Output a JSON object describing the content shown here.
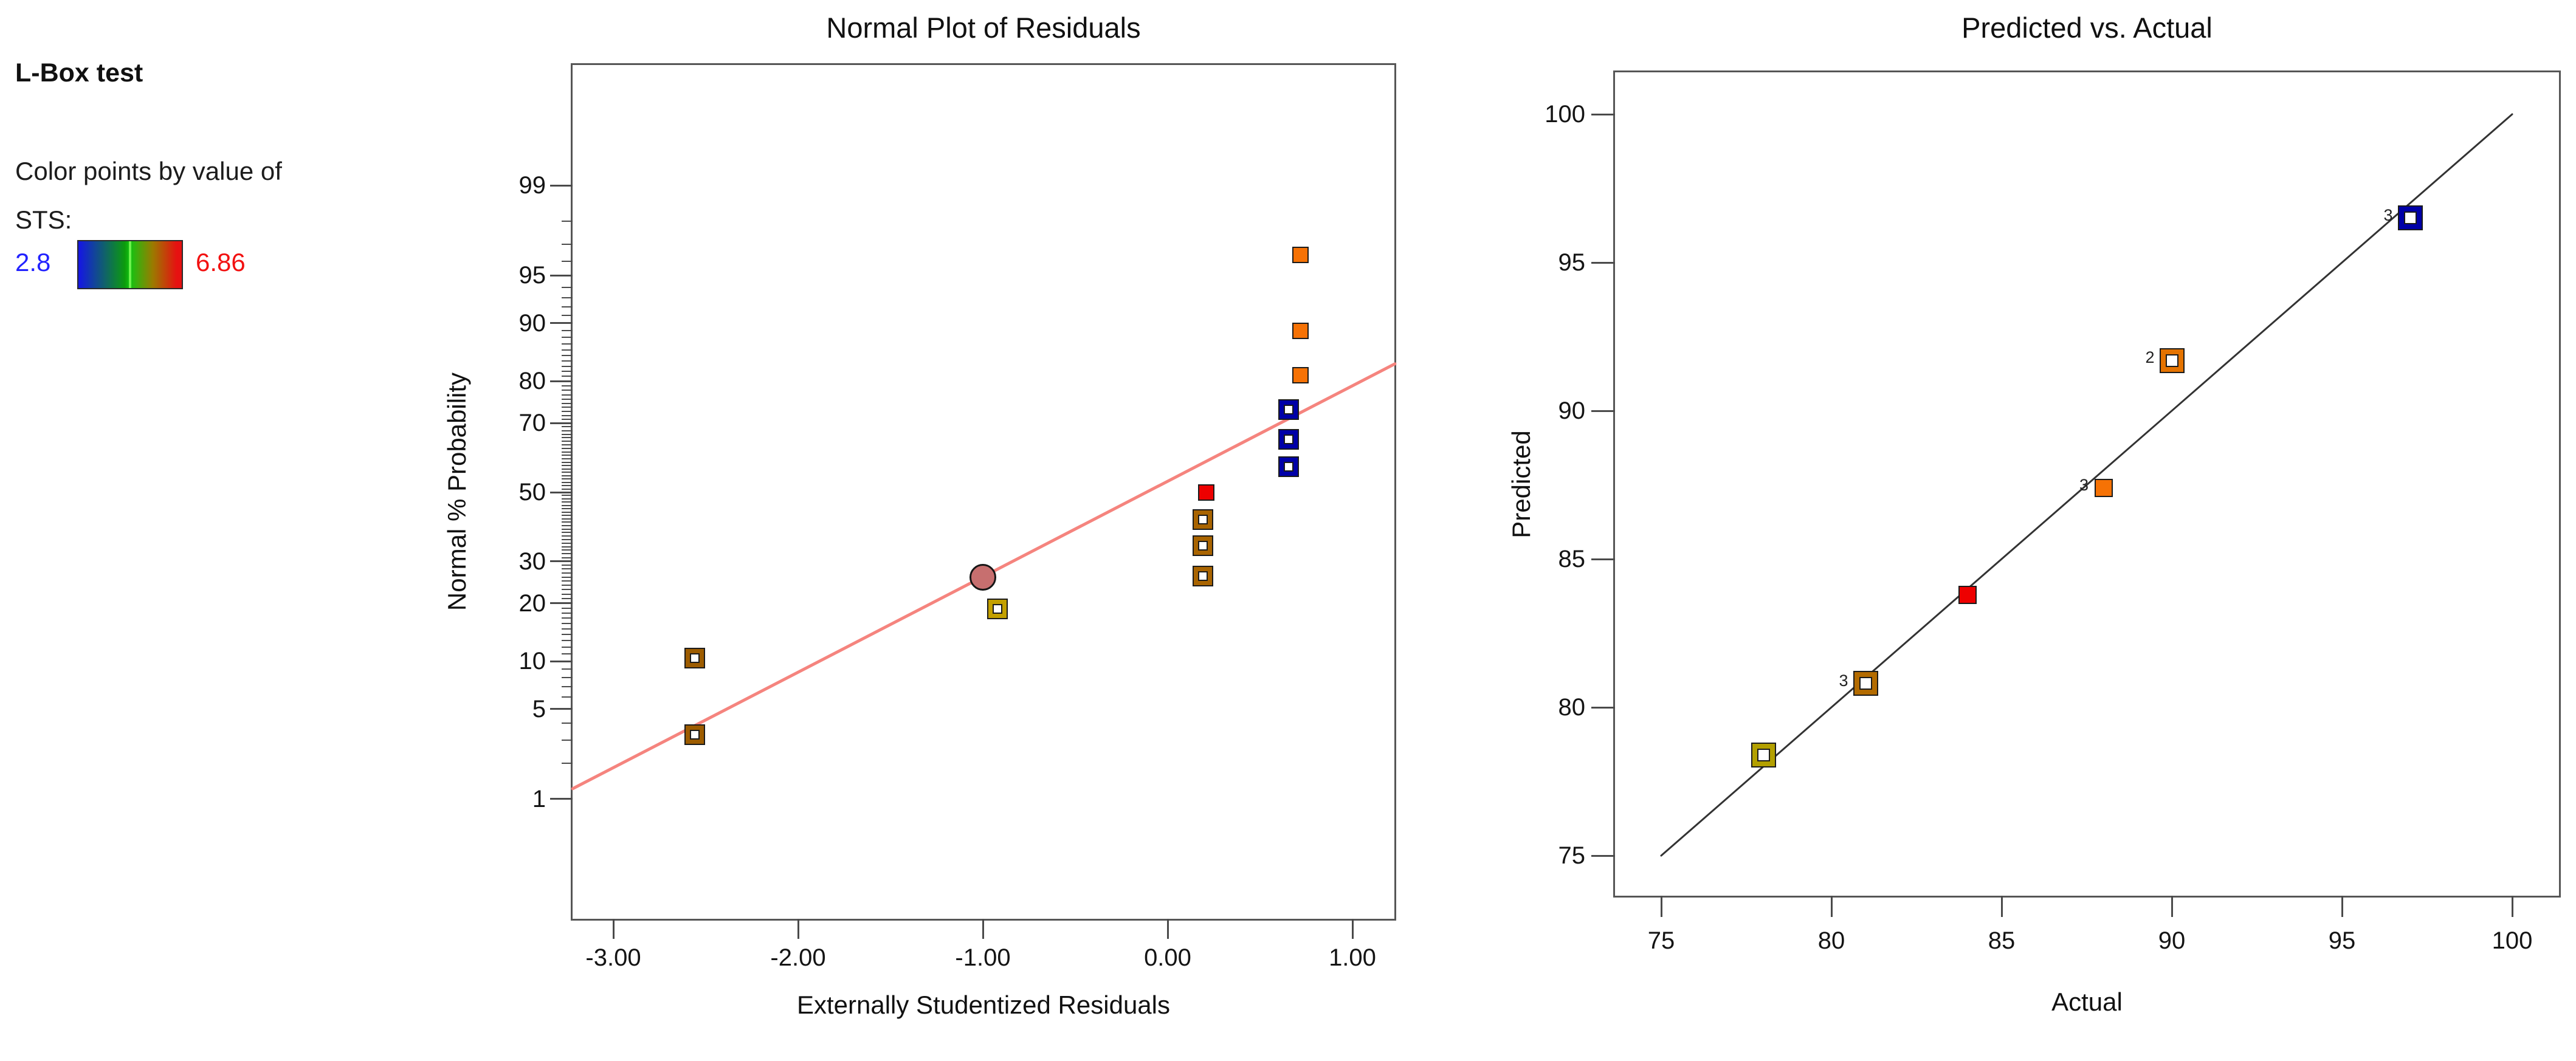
{
  "legend": {
    "title": "L-Box test",
    "subtitle": "Color points by value of",
    "variable_label": "STS:",
    "min_value": "2.8",
    "max_value": "6.86",
    "min_color": "#2222ff",
    "max_color": "#f21111",
    "gradient_css": "linear-gradient(90deg,#1515e6 0%,#0c9c0c 45%,#12c412 50%,#9b7a00 72%,#e61111 95%,#e61111 100%)",
    "gradient_stripe_color": "#6cf24c"
  },
  "chart_data": [
    {
      "type": "scatter",
      "title": "Normal Plot of Residuals",
      "xlabel": "Externally Studentized Residuals",
      "ylabel": "Normal % Probability",
      "x_range": [
        -3.22,
        1.23
      ],
      "x_ticks": [
        {
          "value": -3,
          "label": "-3.00"
        },
        {
          "value": -2,
          "label": "-2.00"
        },
        {
          "value": -1,
          "label": "-1.00"
        },
        {
          "value": 0,
          "label": "0.00"
        },
        {
          "value": 1,
          "label": "1.00"
        }
      ],
      "y_scale": "normal-probability",
      "y_major_ticks": [
        1,
        5,
        10,
        20,
        30,
        50,
        70,
        80,
        90,
        95,
        99
      ],
      "y_minor_tick_step": 1,
      "y_minor_tick_range": [
        2,
        98
      ],
      "trend_line": {
        "color": "#f5847e",
        "probit_intercept": 0.083,
        "probit_slope": 0.724
      },
      "points": [
        {
          "x": -2.56,
          "p": 3.3,
          "marker": "open-square",
          "color": "#9d5c00"
        },
        {
          "x": -2.56,
          "p": 10.4,
          "marker": "open-square",
          "color": "#9d5c00"
        },
        {
          "x": -0.92,
          "p": 18.8,
          "marker": "open-square",
          "color": "#c3a000"
        },
        {
          "x": -1.0,
          "p": 26.0,
          "marker": "filled-circle",
          "color": "#c76f6f"
        },
        {
          "x": 0.19,
          "p": 26.2,
          "marker": "open-square",
          "color": "#a96400"
        },
        {
          "x": 0.19,
          "p": 34.3,
          "marker": "open-square",
          "color": "#a96400"
        },
        {
          "x": 0.19,
          "p": 41.8,
          "marker": "open-square",
          "color": "#a96400"
        },
        {
          "x": 0.21,
          "p": 50.0,
          "marker": "filled-square",
          "color": "#ee0000"
        },
        {
          "x": 0.655,
          "p": 57.7,
          "marker": "open-square",
          "color": "#0000a8"
        },
        {
          "x": 0.655,
          "p": 65.6,
          "marker": "open-square",
          "color": "#0000a8"
        },
        {
          "x": 0.655,
          "p": 73.5,
          "marker": "open-square",
          "color": "#0000a8"
        },
        {
          "x": 0.72,
          "p": 81.3,
          "marker": "filled-square",
          "color": "#f67205"
        },
        {
          "x": 0.72,
          "p": 88.9,
          "marker": "filled-square",
          "color": "#f67205"
        },
        {
          "x": 0.72,
          "p": 96.4,
          "marker": "filled-square",
          "color": "#f67205"
        }
      ]
    },
    {
      "type": "scatter",
      "title": "Predicted vs. Actual",
      "xlabel": "Actual",
      "ylabel": "Predicted",
      "axis_range": [
        73.6,
        101.4
      ],
      "ticks": [
        75,
        80,
        85,
        90,
        95,
        100
      ],
      "identity_line": {
        "color": "#333333",
        "from": 75,
        "to": 100
      },
      "points": [
        {
          "actual": 78,
          "predicted": 78.4,
          "marker": "open-square",
          "color": "#b3a000",
          "count": ""
        },
        {
          "actual": 81,
          "predicted": 80.8,
          "marker": "open-square",
          "color": "#b36b00",
          "count": "3"
        },
        {
          "actual": 84,
          "predicted": 83.8,
          "marker": "filled-square",
          "color": "#ee0000",
          "count": ""
        },
        {
          "actual": 88,
          "predicted": 87.4,
          "marker": "filled-square",
          "color": "#f67205",
          "count": "3"
        },
        {
          "actual": 90,
          "predicted": 91.7,
          "marker": "open-square",
          "color": "#e57300",
          "count": "2"
        },
        {
          "actual": 97,
          "predicted": 96.5,
          "marker": "open-square",
          "color": "#0000a8",
          "count": "3"
        }
      ]
    }
  ]
}
